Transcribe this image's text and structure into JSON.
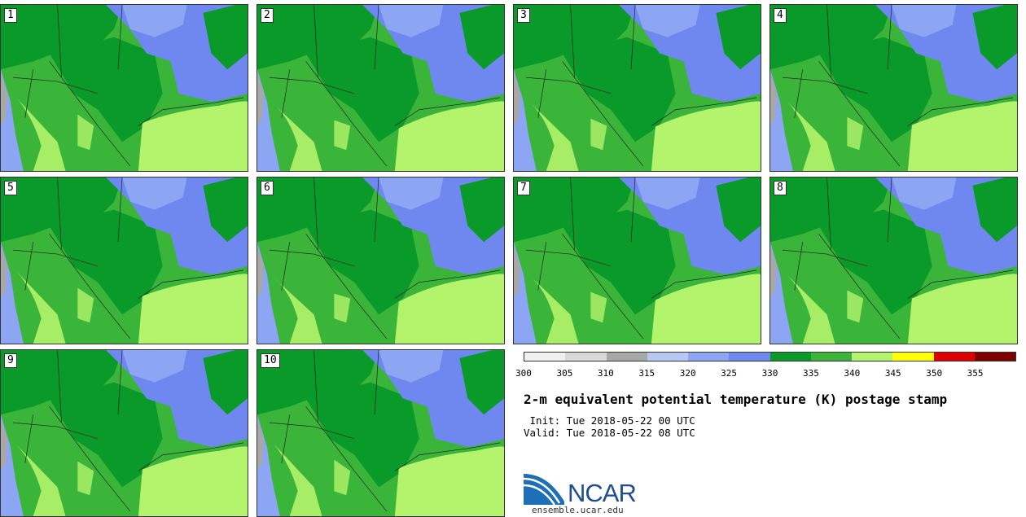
{
  "panels": [
    {
      "label": "1"
    },
    {
      "label": "2"
    },
    {
      "label": "3"
    },
    {
      "label": "4"
    },
    {
      "label": "5"
    },
    {
      "label": "6"
    },
    {
      "label": "7"
    },
    {
      "label": "8"
    },
    {
      "label": "9"
    },
    {
      "label": "10"
    }
  ],
  "colorbar": {
    "colors": [
      "#f0f0f0",
      "#d8d8d8",
      "#a8a8a8",
      "#b8c8f4",
      "#8ca6f4",
      "#6e88f0",
      "#0a9a2a",
      "#3ab53a",
      "#b4f46c",
      "#ffff00",
      "#e00000",
      "#800000"
    ],
    "ticks": [
      "300",
      "305",
      "310",
      "315",
      "320",
      "325",
      "330",
      "335",
      "340",
      "345",
      "350",
      "355"
    ]
  },
  "title": "2-m equivalent potential temperature (K) postage stamp",
  "init_line": " Init: Tue 2018-05-22 00 UTC",
  "valid_line": "Valid: Tue 2018-05-22 08 UTC",
  "logo": {
    "text": "NCAR",
    "url": "ensemble.ucar.edu"
  }
}
